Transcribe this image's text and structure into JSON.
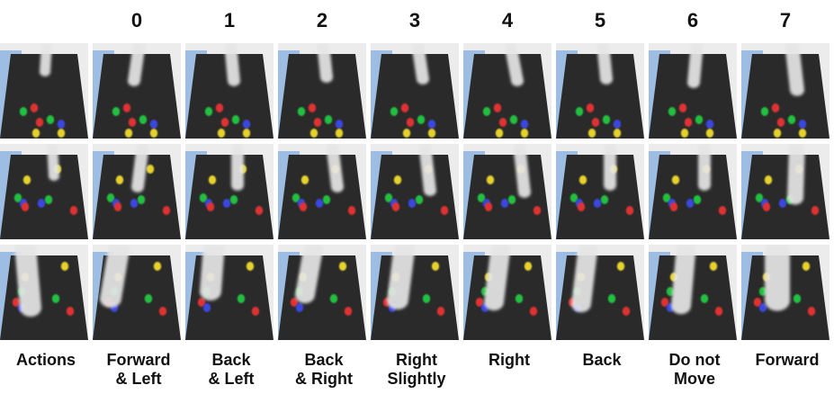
{
  "columns": [
    "0",
    "1",
    "2",
    "3",
    "4",
    "5",
    "6",
    "7"
  ],
  "actions_label": "Actions",
  "actions": [
    [
      "Forward",
      "& Left"
    ],
    [
      "Back",
      "& Left"
    ],
    [
      "Back",
      "& Right"
    ],
    [
      "Right",
      "Slightly"
    ],
    [
      "Right",
      ""
    ],
    [
      "Back",
      ""
    ],
    [
      "Do not",
      "Move"
    ],
    [
      "Forward",
      ""
    ]
  ],
  "colors": {
    "background": "#ececec",
    "wall": "#9dbde3",
    "table": "#2a2a2a",
    "arm": "#e6e6e6",
    "block_red": "#e03030",
    "block_green": "#22c040",
    "block_blue": "#3a46e0",
    "block_yellow": "#e6d22c"
  }
}
